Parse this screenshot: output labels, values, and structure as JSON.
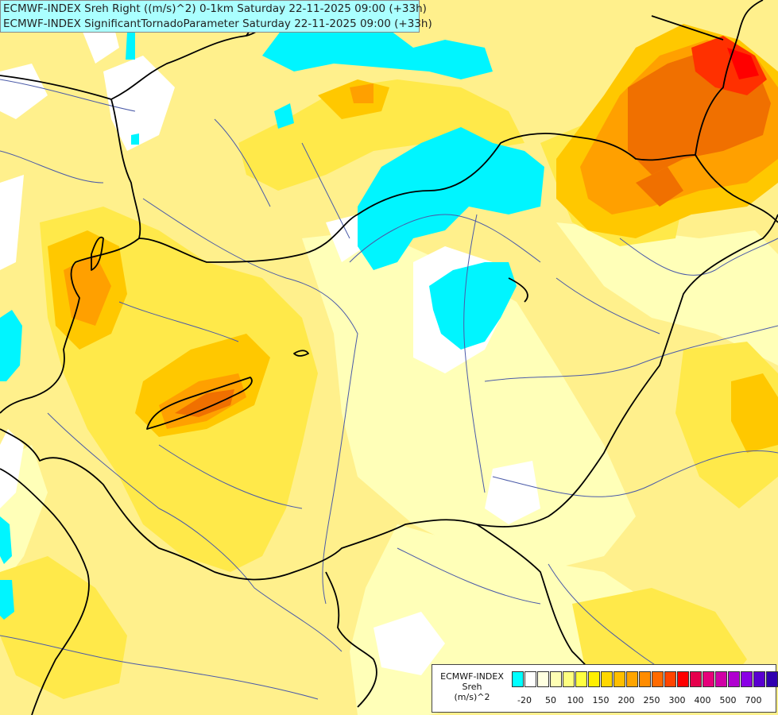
{
  "header": {
    "title_line1": "ECMWF-INDEX Sreh Right ((m/s)^2) 0-1km Saturday 22-11-2025 09:00 (+33h)",
    "title_line2": "ECMWF-INDEX SignificantTornadoParameter Saturday 22-11-2025 09:00 (+33h)"
  },
  "legend": {
    "line1": "ECMWF-INDEX",
    "line2": "Sreh",
    "line3": "(m/s)^2",
    "colors": [
      "#00ffff",
      "#ffffff",
      "#ffffe0",
      "#ffffb4",
      "#ffff80",
      "#ffff40",
      "#ffef00",
      "#ffd700",
      "#ffbf00",
      "#ffa500",
      "#ff8c00",
      "#ff6a00",
      "#ff4400",
      "#ff0000",
      "#e6004c",
      "#e6007a",
      "#d000a6",
      "#b000d0",
      "#8a00e6",
      "#5a00d0",
      "#3000b0",
      "#000080"
    ],
    "ticks": [
      "-20",
      "50",
      "100",
      "150",
      "200",
      "250",
      "300",
      "400",
      "500",
      "700"
    ]
  },
  "map": {
    "palette": {
      "background": "#ffffc8",
      "pale": "#ffffb0",
      "yellow": "#fff36a",
      "deep_yellow": "#ffe23a",
      "gold": "#ffc400",
      "orange": "#ffa000",
      "dark_orange": "#f07800",
      "red_orange": "#ff4000",
      "red": "#ff0000",
      "cyan": "#00ffff",
      "white": "#ffffff",
      "border": "#000000",
      "river": "#4a5aa8"
    }
  }
}
